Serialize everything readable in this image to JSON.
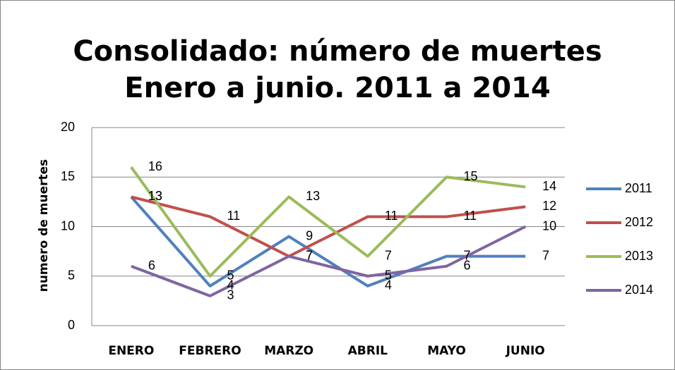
{
  "chart_data": {
    "type": "line",
    "title": [
      "Consolidado: número de muertes",
      "Enero a junio. 2011 a 2014"
    ],
    "y_label": "numero de muertes",
    "categories": [
      "ENERO",
      "FEBRERO",
      "MARZO",
      "ABRIL",
      "MAYO",
      "JUNIO"
    ],
    "series": [
      {
        "name": "2011",
        "color": "#4f81bd",
        "values": [
          13,
          4,
          9,
          4,
          7,
          7
        ]
      },
      {
        "name": "2012",
        "color": "#c0504d",
        "values": [
          13,
          11,
          7,
          11,
          11,
          12
        ]
      },
      {
        "name": "2013",
        "color": "#9bbb59",
        "values": [
          16,
          5,
          13,
          7,
          15,
          14
        ]
      },
      {
        "name": "2014",
        "color": "#8064a2",
        "values": [
          6,
          3,
          7,
          5,
          6,
          10
        ]
      }
    ],
    "ylim": [
      0,
      20
    ],
    "yticks": [
      0,
      5,
      10,
      15,
      20
    ],
    "grid": true,
    "legend": "right",
    "data_labels": true
  }
}
